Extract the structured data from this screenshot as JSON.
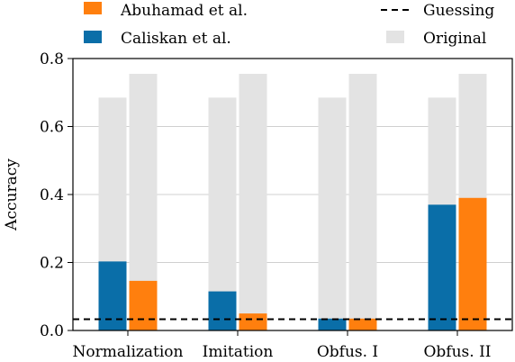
{
  "chart_data": {
    "type": "bar",
    "xlabel": "",
    "ylabel": "Accuracy",
    "ylim": [
      0,
      0.8
    ],
    "yticks": [
      "0.0",
      "0.2",
      "0.4",
      "0.6",
      "0.8"
    ],
    "categories": [
      "Normalization",
      "Imitation",
      "Obfus. I",
      "Obfus. II"
    ],
    "series": [
      {
        "name": "Caliskan et al.",
        "values": [
          0.203,
          0.115,
          0.035,
          0.37
        ],
        "color": "#0a6ea8",
        "original": [
          0.685,
          0.685,
          0.685,
          0.685
        ]
      },
      {
        "name": "Abuhamad et al.",
        "values": [
          0.146,
          0.05,
          0.035,
          0.39
        ],
        "color": "#ff7f0e",
        "original": [
          0.755,
          0.755,
          0.755,
          0.755
        ]
      }
    ],
    "original_label": "Original",
    "original_color": "#e3e3e3",
    "guessing": {
      "label": "Guessing",
      "value": 0.033
    },
    "grid": "y",
    "legend_position": "top"
  }
}
